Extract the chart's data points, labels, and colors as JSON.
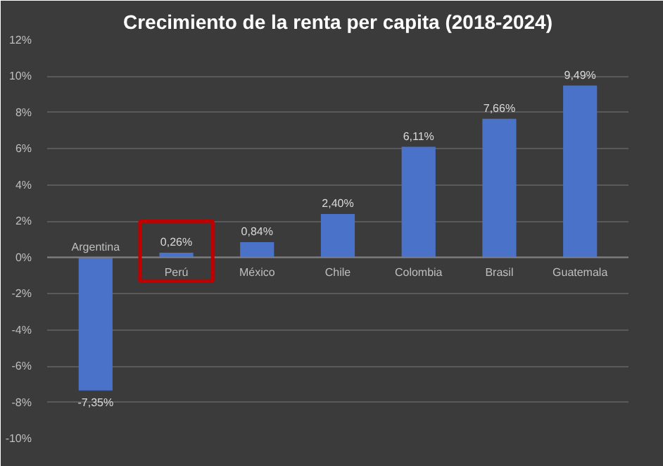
{
  "chart_data": {
    "type": "bar",
    "title": "Crecimiento de la renta per capita (2018-2024)",
    "categories": [
      "Argentina",
      "Perú",
      "México",
      "Chile",
      "Colombia",
      "Brasil",
      "Guatemala"
    ],
    "values": [
      -7.35,
      0.26,
      0.84,
      2.4,
      6.11,
      7.66,
      9.49
    ],
    "value_labels": [
      "-7,35%",
      "0,26%",
      "0,84%",
      "2,40%",
      "6,11%",
      "7,66%",
      "9,49%"
    ],
    "color": "#4a72c8",
    "ylim": [
      -10,
      12
    ],
    "yticks": [
      {
        "value": -10,
        "label": "-10%"
      },
      {
        "value": -8,
        "label": "-8%"
      },
      {
        "value": -6,
        "label": "-6%"
      },
      {
        "value": -4,
        "label": "-4%"
      },
      {
        "value": -2,
        "label": "-2%"
      },
      {
        "value": 0,
        "label": "0%"
      },
      {
        "value": 2,
        "label": "2%"
      },
      {
        "value": 4,
        "label": "4%"
      },
      {
        "value": 6,
        "label": "6%"
      },
      {
        "value": 8,
        "label": "8%"
      },
      {
        "value": 10,
        "label": "10%"
      },
      {
        "value": 12,
        "label": "12%"
      }
    ],
    "grid": "y"
  }
}
